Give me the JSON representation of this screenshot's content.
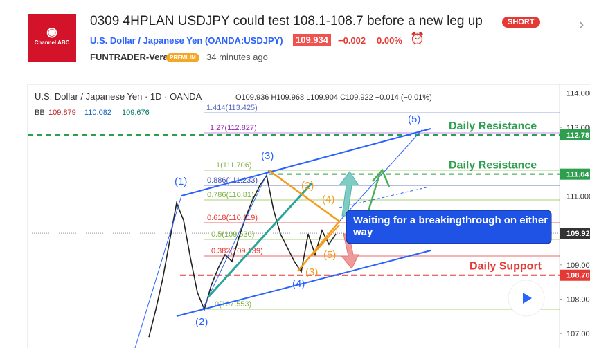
{
  "header": {
    "logo": "Channel ABC",
    "title": "0309 4HPLAN USDJPY could test 108.1-108.7 before a new leg up",
    "badge": "SHORT",
    "symbol": "U.S. Dollar / Japanese Yen (OANDA:USDJPY)",
    "price": "109.934",
    "change": "−0.002",
    "change_pct": "0.00%",
    "author": "FUNTRADER-Vera",
    "author_badge": "PREMIUM",
    "time": "34 minutes ago"
  },
  "chart": {
    "legend": "U.S. Dollar / Japanese Yen · 1D · OANDA",
    "ohlc": "O109.936 H109.968 L109.904 C109.922 −0.014 (−0.01%)",
    "bb_label": "BB",
    "bb_values": [
      "109.879",
      "110.082",
      "109.676"
    ],
    "price_axis": {
      "ylim": [
        114.25,
        106.4
      ],
      "ticks": [
        {
          "value": 114,
          "label": "114.000"
        },
        {
          "value": 113,
          "label": "113.000"
        },
        {
          "value": 111,
          "label": "111.000"
        },
        {
          "value": 109,
          "label": "109.000"
        },
        {
          "value": 108,
          "label": "108.000"
        },
        {
          "value": 107,
          "label": "107.000"
        }
      ]
    },
    "levels": [
      {
        "value": 112.78,
        "label": "112.78",
        "color": "#2e9e4f",
        "text": "Daily Resistance"
      },
      {
        "value": 111.64,
        "label": "111.64",
        "color": "#2e9e4f",
        "text": "Daily Resistance"
      },
      {
        "value": 108.7,
        "label": "108.70",
        "color": "#e53935",
        "text": "Daily Support"
      }
    ],
    "last_price": {
      "value": 109.922,
      "label": "109.92"
    },
    "closes": [
      106.9,
      107.7,
      108.6,
      109.7,
      110.8,
      110.3,
      109.2,
      108.2,
      107.7,
      108.4,
      108.9,
      109.3,
      109.1,
      109.8,
      110.4,
      110.9,
      111.3,
      111.6,
      110.6,
      109.9,
      109.5,
      109.1,
      108.8,
      109.9,
      109.3,
      110.0,
      109.6,
      109.9
    ],
    "fib_labels": [
      "1.414(113.425)",
      "1.27(112.827)",
      "1(111.706)",
      "0.886(111.233)",
      "0.786(110.81)",
      "0.618(110.119)",
      "0.5(109.630)",
      "0.382(109.139)",
      "0(107.553)"
    ],
    "waves_blue": [
      "(1)",
      "(2)",
      "(3)",
      "(4)",
      "(5)"
    ],
    "waves_orange": [
      "(2)",
      "(4)",
      "(5)",
      "(3)"
    ],
    "callout": "Waiting for a breakingthrough on either way"
  }
}
